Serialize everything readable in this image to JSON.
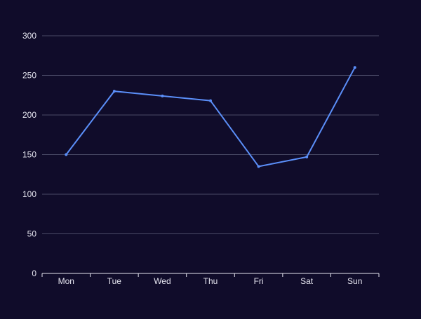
{
  "chart_data": {
    "type": "line",
    "title": "",
    "xlabel": "",
    "ylabel": "",
    "categories": [
      "Mon",
      "Tue",
      "Wed",
      "Thu",
      "Fri",
      "Sat",
      "Sun"
    ],
    "series": [
      {
        "values": [
          150,
          230,
          224,
          218,
          135,
          147,
          260
        ]
      }
    ],
    "ylim": [
      0,
      300
    ],
    "yticks": [
      0,
      50,
      100,
      150,
      200,
      250,
      300
    ],
    "grid": true,
    "legend": "none",
    "colors": {
      "background": "#100c2a",
      "line": "#5b8ff9",
      "grid": "#4a4a66",
      "text": "#e6e6f0",
      "axis": "#e6e6f0"
    }
  }
}
